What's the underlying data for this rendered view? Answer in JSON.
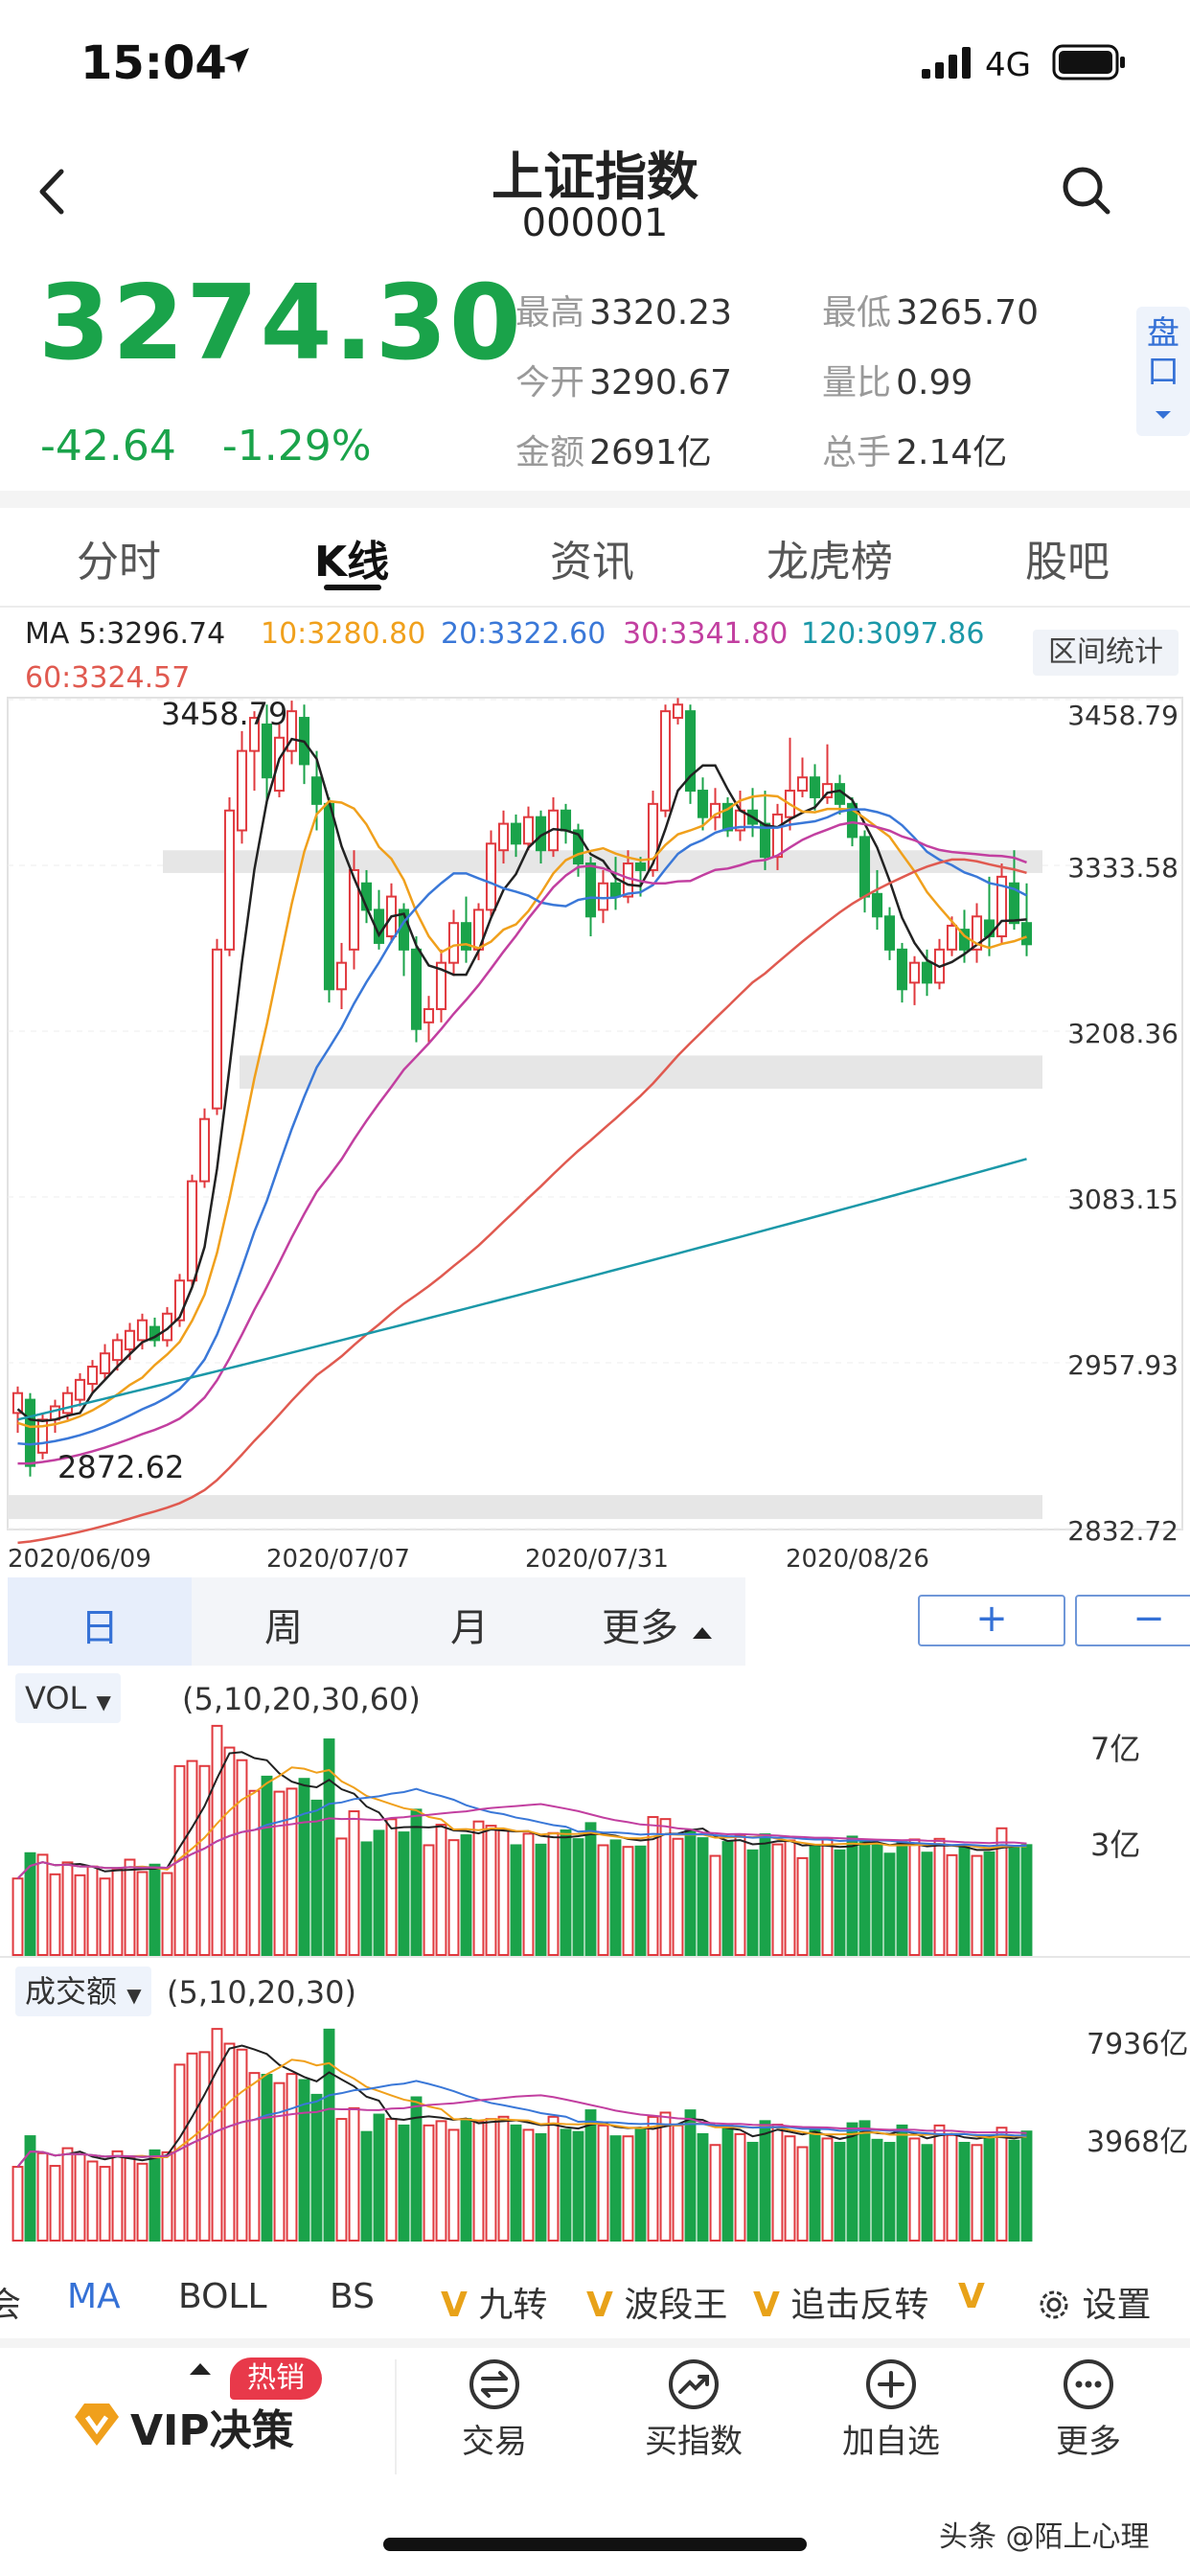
{
  "status": {
    "time": "15:04",
    "network": "4G"
  },
  "header": {
    "title": "上证指数",
    "code": "000001"
  },
  "quote": {
    "price": "3274.30",
    "change": "-42.64",
    "change_pct": "-1.29%",
    "high_label": "最高",
    "high": "3320.23",
    "low_label": "最低",
    "low": "3265.70",
    "open_label": "今开",
    "open": "3290.67",
    "ratio_label": "量比",
    "ratio": "0.99",
    "amount_label": "金额",
    "amount": "2691亿",
    "hands_label": "总手",
    "hands": "2.14亿",
    "pankou": "盘口"
  },
  "tabs": [
    "分时",
    "K线",
    "资讯",
    "龙虎榜",
    "股吧"
  ],
  "ma_legend": {
    "ma5": "MA 5:3296.74",
    "ma10": "10:3280.80",
    "ma20": "20:3322.60",
    "ma30": "30:3341.80",
    "ma120": "120:3097.86",
    "ma60": "60:3324.57",
    "stat_button": "区间统计"
  },
  "colors": {
    "up": "#e0393e",
    "down": "#1aa34a",
    "ma5": "#222222",
    "ma10": "#f0a01c",
    "ma20": "#3a78d8",
    "ma30": "#c23fa0",
    "ma60": "#e05a50",
    "ma120": "#1b98a8",
    "accent": "#3571d6"
  },
  "chart_data": {
    "type": "candlestick",
    "y_ticks": [
      "3458.79",
      "3333.58",
      "3208.36",
      "3083.15",
      "2957.93",
      "2832.72"
    ],
    "ylim": [
      2832.72,
      3458.79
    ],
    "x_ticks": [
      "2020/06/09",
      "2020/07/07",
      "2020/07/31",
      "2020/08/26"
    ],
    "annotations": {
      "max": "3458.79",
      "min": "2872.62"
    },
    "candles": [
      [
        2920,
        2935,
        2905,
        2940
      ],
      [
        2930,
        2880,
        2872,
        2935
      ],
      [
        2890,
        2915,
        2885,
        2920
      ],
      [
        2915,
        2925,
        2905,
        2930
      ],
      [
        2920,
        2935,
        2915,
        2940
      ],
      [
        2930,
        2945,
        2925,
        2950
      ],
      [
        2942,
        2955,
        2935,
        2960
      ],
      [
        2950,
        2965,
        2945,
        2972
      ],
      [
        2960,
        2975,
        2952,
        2980
      ],
      [
        2968,
        2982,
        2960,
        2988
      ],
      [
        2975,
        2990,
        2968,
        2995
      ],
      [
        2985,
        2975,
        2970,
        2992
      ],
      [
        2975,
        2995,
        2970,
        3000
      ],
      [
        2990,
        3020,
        2985,
        3025
      ],
      [
        3020,
        3095,
        3015,
        3100
      ],
      [
        3095,
        3142,
        3090,
        3150
      ],
      [
        3150,
        3270,
        3145,
        3278
      ],
      [
        3270,
        3375,
        3265,
        3385
      ],
      [
        3360,
        3420,
        3350,
        3435
      ],
      [
        3420,
        3445,
        3390,
        3450
      ],
      [
        3440,
        3400,
        3380,
        3455
      ],
      [
        3390,
        3430,
        3385,
        3440
      ],
      [
        3420,
        3450,
        3410,
        3458
      ],
      [
        3445,
        3410,
        3395,
        3455
      ],
      [
        3400,
        3380,
        3360,
        3420
      ],
      [
        3380,
        3240,
        3230,
        3385
      ],
      [
        3240,
        3260,
        3225,
        3275
      ],
      [
        3270,
        3330,
        3255,
        3345
      ],
      [
        3320,
        3300,
        3290,
        3330
      ],
      [
        3300,
        3275,
        3270,
        3315
      ],
      [
        3280,
        3310,
        3275,
        3320
      ],
      [
        3300,
        3270,
        3250,
        3305
      ],
      [
        3270,
        3210,
        3200,
        3280
      ],
      [
        3215,
        3225,
        3200,
        3235
      ],
      [
        3225,
        3260,
        3215,
        3270
      ],
      [
        3260,
        3290,
        3250,
        3300
      ],
      [
        3290,
        3270,
        3260,
        3310
      ],
      [
        3270,
        3300,
        3262,
        3305
      ],
      [
        3300,
        3350,
        3295,
        3360
      ],
      [
        3345,
        3365,
        3335,
        3375
      ],
      [
        3365,
        3350,
        3340,
        3372
      ],
      [
        3350,
        3370,
        3345,
        3378
      ],
      [
        3370,
        3345,
        3335,
        3375
      ],
      [
        3345,
        3375,
        3340,
        3385
      ],
      [
        3375,
        3360,
        3350,
        3380
      ],
      [
        3360,
        3335,
        3325,
        3365
      ],
      [
        3335,
        3295,
        3280,
        3340
      ],
      [
        3300,
        3320,
        3290,
        3330
      ],
      [
        3320,
        3310,
        3300,
        3340
      ],
      [
        3310,
        3335,
        3305,
        3345
      ],
      [
        3335,
        3330,
        3310,
        3340
      ],
      [
        3330,
        3380,
        3325,
        3390
      ],
      [
        3375,
        3450,
        3370,
        3455
      ],
      [
        3445,
        3455,
        3440,
        3460
      ],
      [
        3450,
        3390,
        3380,
        3455
      ],
      [
        3390,
        3370,
        3360,
        3400
      ],
      [
        3370,
        3380,
        3360,
        3392
      ],
      [
        3380,
        3360,
        3355,
        3385
      ],
      [
        3360,
        3375,
        3352,
        3390
      ],
      [
        3375,
        3365,
        3355,
        3392
      ],
      [
        3365,
        3340,
        3330,
        3390
      ],
      [
        3340,
        3372,
        3330,
        3380
      ],
      [
        3370,
        3390,
        3360,
        3430
      ],
      [
        3390,
        3400,
        3385,
        3415
      ],
      [
        3400,
        3385,
        3375,
        3410
      ],
      [
        3385,
        3395,
        3380,
        3425
      ],
      [
        3395,
        3380,
        3372,
        3402
      ],
      [
        3380,
        3355,
        3348,
        3385
      ],
      [
        3355,
        3310,
        3298,
        3360
      ],
      [
        3312,
        3295,
        3285,
        3330
      ],
      [
        3295,
        3270,
        3262,
        3302
      ],
      [
        3270,
        3240,
        3230,
        3275
      ],
      [
        3245,
        3260,
        3228,
        3265
      ],
      [
        3260,
        3245,
        3235,
        3270
      ],
      [
        3245,
        3270,
        3240,
        3278
      ],
      [
        3270,
        3288,
        3265,
        3295
      ],
      [
        3285,
        3270,
        3260,
        3300
      ],
      [
        3270,
        3295,
        3260,
        3305
      ],
      [
        3292,
        3280,
        3265,
        3325
      ],
      [
        3280,
        3325,
        3275,
        3335
      ],
      [
        3320,
        3290,
        3285,
        3345
      ],
      [
        3290,
        3274,
        3265,
        3320
      ]
    ],
    "volume_panel": {
      "label": "VOL",
      "params": "(5,10,20,30,60)",
      "ticks": [
        "7亿",
        "3亿"
      ]
    },
    "amount_panel": {
      "label": "成交额",
      "params": "(5,10,20,30)",
      "ticks": [
        "7936亿",
        "3968亿"
      ]
    }
  },
  "period_tabs": [
    "日",
    "周",
    "月",
    "更多"
  ],
  "zoom": {
    "plus": "+",
    "minus": "−"
  },
  "indicators": [
    "会",
    "MA",
    "BOLL",
    "BS",
    "九转",
    "波段王",
    "追击反转",
    "V"
  ],
  "indicator_v": "V",
  "settings_label": "设置",
  "bottom_nav": {
    "vip": "VIP决策",
    "vip_badge": "热销",
    "items": [
      "交易",
      "买指数",
      "加自选",
      "更多"
    ]
  },
  "watermark": "头条 @陌上心理"
}
